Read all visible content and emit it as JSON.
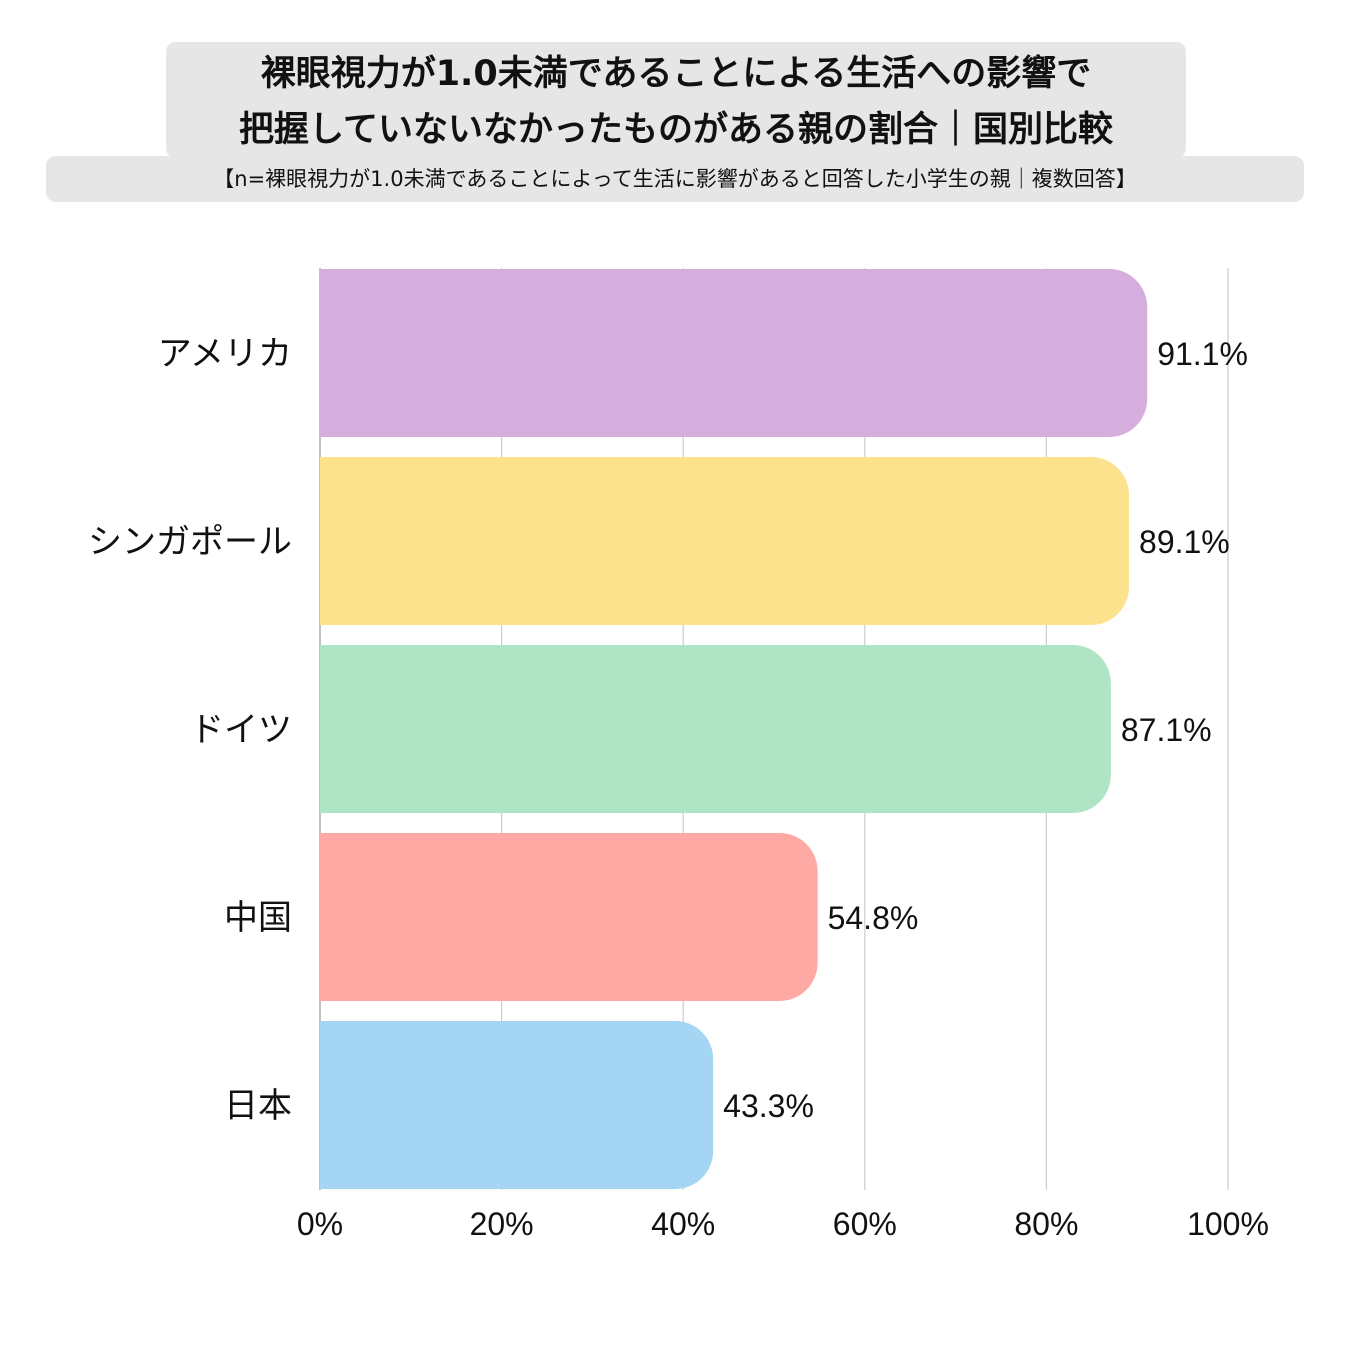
{
  "chart_data": {
    "type": "bar",
    "orientation": "horizontal",
    "title": "裸眼視力が1.0未満であることによる生活への影響で 把握していないなかったものがある親の割合｜国別比較",
    "title_lines": [
      "裸眼視力が1.0未満であることによる生活への影響で",
      "把握していないなかったものがある親の割合｜国別比較"
    ],
    "subtitle": "【n=裸眼視力が1.0未満であることによって生活に影響があると回答した小学生の親｜複数回答】",
    "categories": [
      "アメリカ",
      "シンガポール",
      "ドイツ",
      "中国",
      "日本"
    ],
    "values": [
      91.1,
      89.1,
      87.1,
      54.8,
      43.3
    ],
    "value_labels": [
      "91.1%",
      "89.1%",
      "87.1%",
      "54.8%",
      "43.3%"
    ],
    "colors": [
      "#d5aedd",
      "#fde28e",
      "#afe5c4",
      "#fea9a3",
      "#a4d6f3"
    ],
    "xlim": [
      0,
      100
    ],
    "xticks": [
      0,
      20,
      40,
      60,
      80,
      100
    ],
    "xtick_labels": [
      "0%",
      "20%",
      "40%",
      "60%",
      "80%",
      "100%"
    ],
    "grid": true,
    "grid_color": "#cccccc",
    "legend": "none"
  }
}
